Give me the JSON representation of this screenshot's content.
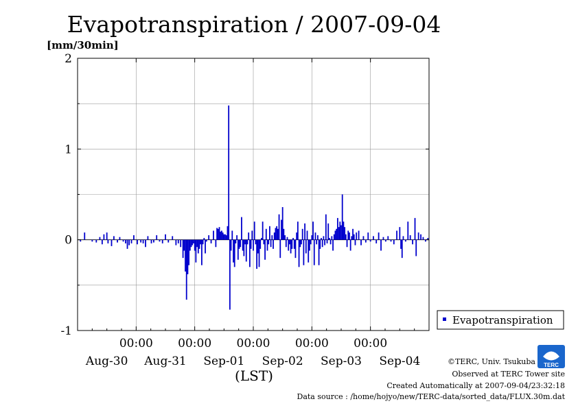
{
  "chart_data": {
    "type": "bar",
    "title": "Evapotranspiration / 2007-09-04",
    "ylabel": "[mm/30min]",
    "xlabel": "(LST)",
    "ylim": [
      -1,
      2
    ],
    "xlim": [
      0,
      6
    ],
    "y_ticks": [
      "2",
      "1",
      "0",
      "-1"
    ],
    "y_tick_values": [
      2,
      1,
      0,
      -1
    ],
    "x_tick_labels": [
      "00:00",
      "00:00",
      "00:00",
      "00:00",
      "00:00"
    ],
    "x_tick_values": [
      1,
      2,
      3,
      4,
      5
    ],
    "day_labels": [
      "Aug-30",
      "Aug-31",
      "Sep-01",
      "Sep-02",
      "Sep-03",
      "Sep-04"
    ],
    "day_label_values": [
      0.5,
      1.5,
      2.5,
      3.5,
      4.5,
      5.5
    ],
    "grid": true,
    "legend": "right",
    "series": [
      {
        "name": "Evapotranspiration",
        "color": "#0000cc",
        "unit_of_x": "days since start of Aug-30 (LST)",
        "points": [
          [
            0.05,
            -0.02
          ],
          [
            0.12,
            0.08
          ],
          [
            0.25,
            -0.02
          ],
          [
            0.32,
            -0.03
          ],
          [
            0.38,
            0.03
          ],
          [
            0.42,
            -0.05
          ],
          [
            0.45,
            0.06
          ],
          [
            0.5,
            0.08
          ],
          [
            0.52,
            -0.04
          ],
          [
            0.58,
            -0.07
          ],
          [
            0.62,
            0.04
          ],
          [
            0.68,
            -0.03
          ],
          [
            0.72,
            0.03
          ],
          [
            0.78,
            -0.02
          ],
          [
            0.82,
            -0.04
          ],
          [
            0.85,
            -0.1
          ],
          [
            0.88,
            -0.06
          ],
          [
            0.92,
            -0.04
          ],
          [
            0.96,
            0.05
          ],
          [
            1.02,
            -0.05
          ],
          [
            1.08,
            -0.03
          ],
          [
            1.12,
            -0.04
          ],
          [
            1.16,
            -0.08
          ],
          [
            1.2,
            0.04
          ],
          [
            1.26,
            -0.04
          ],
          [
            1.3,
            -0.03
          ],
          [
            1.35,
            0.05
          ],
          [
            1.4,
            -0.02
          ],
          [
            1.45,
            -0.04
          ],
          [
            1.5,
            0.06
          ],
          [
            1.55,
            -0.03
          ],
          [
            1.62,
            0.04
          ],
          [
            1.68,
            -0.06
          ],
          [
            1.72,
            -0.04
          ],
          [
            1.76,
            -0.08
          ],
          [
            1.8,
            -0.2
          ],
          [
            1.82,
            -0.12
          ],
          [
            1.84,
            -0.35
          ],
          [
            1.86,
            -0.66
          ],
          [
            1.88,
            -0.38
          ],
          [
            1.9,
            -0.28
          ],
          [
            1.92,
            -0.12
          ],
          [
            1.94,
            -0.08
          ],
          [
            1.96,
            -0.06
          ],
          [
            1.98,
            -0.04
          ],
          [
            2.0,
            -0.12
          ],
          [
            2.02,
            -0.25
          ],
          [
            2.04,
            -0.08
          ],
          [
            2.06,
            -0.15
          ],
          [
            2.08,
            -0.1
          ],
          [
            2.1,
            -0.05
          ],
          [
            2.12,
            -0.28
          ],
          [
            2.14,
            -0.05
          ],
          [
            2.16,
            0.02
          ],
          [
            2.18,
            -0.15
          ],
          [
            2.2,
            -0.02
          ],
          [
            2.24,
            0.05
          ],
          [
            2.28,
            -0.04
          ],
          [
            2.32,
            0.1
          ],
          [
            2.36,
            -0.08
          ],
          [
            2.38,
            0.13
          ],
          [
            2.4,
            0.12
          ],
          [
            2.42,
            0.14
          ],
          [
            2.44,
            0.09
          ],
          [
            2.46,
            0.1
          ],
          [
            2.48,
            0.08
          ],
          [
            2.5,
            0.06
          ],
          [
            2.52,
            0.06
          ],
          [
            2.54,
            0.05
          ],
          [
            2.56,
            0.15
          ],
          [
            2.58,
            1.48
          ],
          [
            2.6,
            -0.77
          ],
          [
            2.62,
            -0.12
          ],
          [
            2.64,
            0.1
          ],
          [
            2.66,
            -0.25
          ],
          [
            2.68,
            -0.3
          ],
          [
            2.7,
            -0.04
          ],
          [
            2.72,
            0.05
          ],
          [
            2.74,
            -0.22
          ],
          [
            2.76,
            -0.1
          ],
          [
            2.78,
            -0.08
          ],
          [
            2.8,
            0.25
          ],
          [
            2.82,
            -0.12
          ],
          [
            2.84,
            -0.18
          ],
          [
            2.86,
            -0.05
          ],
          [
            2.88,
            -0.24
          ],
          [
            2.9,
            -0.05
          ],
          [
            2.92,
            0.08
          ],
          [
            2.94,
            -0.3
          ],
          [
            2.96,
            -0.1
          ],
          [
            2.98,
            0.1
          ],
          [
            3.0,
            -0.12
          ],
          [
            3.02,
            0.2
          ],
          [
            3.04,
            -0.05
          ],
          [
            3.06,
            -0.32
          ],
          [
            3.08,
            -0.15
          ],
          [
            3.1,
            -0.3
          ],
          [
            3.12,
            -0.1
          ],
          [
            3.14,
            0.02
          ],
          [
            3.16,
            0.2
          ],
          [
            3.18,
            -0.05
          ],
          [
            3.2,
            -0.22
          ],
          [
            3.22,
            0.12
          ],
          [
            3.24,
            -0.12
          ],
          [
            3.26,
            -0.05
          ],
          [
            3.28,
            0.15
          ],
          [
            3.3,
            -0.08
          ],
          [
            3.32,
            0.05
          ],
          [
            3.34,
            -0.1
          ],
          [
            3.36,
            0.08
          ],
          [
            3.38,
            0.13
          ],
          [
            3.4,
            0.15
          ],
          [
            3.42,
            0.12
          ],
          [
            3.44,
            0.28
          ],
          [
            3.46,
            -0.2
          ],
          [
            3.48,
            0.22
          ],
          [
            3.5,
            0.36
          ],
          [
            3.52,
            0.12
          ],
          [
            3.54,
            0.05
          ],
          [
            3.56,
            -0.08
          ],
          [
            3.58,
            0.03
          ],
          [
            3.6,
            -0.12
          ],
          [
            3.62,
            -0.05
          ],
          [
            3.64,
            -0.15
          ],
          [
            3.66,
            -0.1
          ],
          [
            3.68,
            0.02
          ],
          [
            3.7,
            -0.1
          ],
          [
            3.72,
            -0.2
          ],
          [
            3.74,
            0.08
          ],
          [
            3.76,
            0.2
          ],
          [
            3.78,
            -0.3
          ],
          [
            3.8,
            -0.08
          ],
          [
            3.82,
            -0.05
          ],
          [
            3.84,
            0.12
          ],
          [
            3.86,
            -0.28
          ],
          [
            3.88,
            0.18
          ],
          [
            3.9,
            -0.15
          ],
          [
            3.92,
            0.1
          ],
          [
            3.94,
            -0.25
          ],
          [
            3.96,
            -0.12
          ],
          [
            3.98,
            -0.05
          ],
          [
            4.0,
            0.05
          ],
          [
            4.02,
            0.2
          ],
          [
            4.04,
            -0.28
          ],
          [
            4.06,
            0.08
          ],
          [
            4.08,
            -0.05
          ],
          [
            4.1,
            0.05
          ],
          [
            4.12,
            -0.28
          ],
          [
            4.14,
            -0.1
          ],
          [
            4.16,
            0.02
          ],
          [
            4.18,
            -0.08
          ],
          [
            4.2,
            0.04
          ],
          [
            4.22,
            -0.06
          ],
          [
            4.24,
            0.28
          ],
          [
            4.26,
            -0.04
          ],
          [
            4.28,
            0.18
          ],
          [
            4.3,
            0.02
          ],
          [
            4.32,
            -0.05
          ],
          [
            4.34,
            0.04
          ],
          [
            4.36,
            -0.12
          ],
          [
            4.38,
            0.06
          ],
          [
            4.4,
            0.1
          ],
          [
            4.42,
            0.12
          ],
          [
            4.44,
            0.24
          ],
          [
            4.46,
            0.14
          ],
          [
            4.48,
            0.2
          ],
          [
            4.5,
            0.16
          ],
          [
            4.52,
            0.5
          ],
          [
            4.54,
            0.2
          ],
          [
            4.56,
            0.14
          ],
          [
            4.58,
            0.06
          ],
          [
            4.6,
            -0.08
          ],
          [
            4.62,
            0.1
          ],
          [
            4.64,
            0.08
          ],
          [
            4.66,
            -0.12
          ],
          [
            4.68,
            0.04
          ],
          [
            4.7,
            0.12
          ],
          [
            4.72,
            0.06
          ],
          [
            4.74,
            -0.06
          ],
          [
            4.76,
            0.08
          ],
          [
            4.8,
            0.1
          ],
          [
            4.84,
            -0.06
          ],
          [
            4.88,
            0.04
          ],
          [
            4.92,
            -0.03
          ],
          [
            4.96,
            0.08
          ],
          [
            5.0,
            -0.02
          ],
          [
            5.05,
            0.04
          ],
          [
            5.1,
            -0.04
          ],
          [
            5.14,
            0.08
          ],
          [
            5.18,
            -0.12
          ],
          [
            5.22,
            0.03
          ],
          [
            5.26,
            -0.02
          ],
          [
            5.3,
            0.04
          ],
          [
            5.35,
            -0.02
          ],
          [
            5.4,
            -0.05
          ],
          [
            5.45,
            0.1
          ],
          [
            5.5,
            0.14
          ],
          [
            5.52,
            -0.1
          ],
          [
            5.54,
            -0.2
          ],
          [
            5.56,
            0.04
          ],
          [
            5.6,
            -0.02
          ],
          [
            5.64,
            0.2
          ],
          [
            5.68,
            0.05
          ],
          [
            5.72,
            -0.05
          ],
          [
            5.76,
            0.24
          ],
          [
            5.78,
            -0.18
          ],
          [
            5.82,
            0.08
          ],
          [
            5.86,
            0.06
          ],
          [
            5.9,
            0.03
          ],
          [
            5.94,
            -0.02
          ],
          [
            5.98,
            0.02
          ]
        ]
      }
    ]
  },
  "footer": {
    "copyright": "©TERC, Univ. Tsukuba",
    "observed": "Observed at TERC Tower site",
    "created": "Created Automatically at 2007-09-04/23:32:18",
    "source": "Data source : /home/hojyo/new/TERC-data/sorted_data/FLUX.30m.dat"
  },
  "logo": {
    "text": "TERC",
    "color": "#1a66cc"
  }
}
